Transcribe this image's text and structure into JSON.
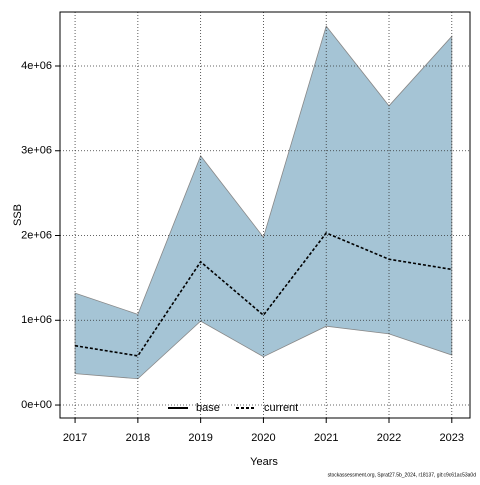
{
  "chart_data": {
    "type": "line",
    "xlabel": "Years",
    "ylabel": "SSB",
    "footnote": "stockassessment.org, Sprat27.5b_2024, r18137, git:c9c61ac53a0d",
    "x": [
      2017,
      2018,
      2019,
      2020,
      2021,
      2022,
      2023
    ],
    "band": {
      "color": "#a5c4d5",
      "upper": [
        1320000,
        1070000,
        2940000,
        1980000,
        4470000,
        3530000,
        4350000
      ],
      "lower": [
        370000,
        310000,
        990000,
        570000,
        930000,
        840000,
        590000
      ]
    },
    "series": [
      {
        "name": "current",
        "color": "#000000",
        "dash": true,
        "values": [
          700000,
          580000,
          1690000,
          1060000,
          2030000,
          1720000,
          1600000
        ]
      }
    ],
    "legend": [
      {
        "name": "base",
        "dash": false
      },
      {
        "name": "current",
        "dash": true
      }
    ],
    "legend_position": "bottom",
    "xlim": [
      2016.76,
      2023.29
    ],
    "xticks": [
      2017,
      2018,
      2019,
      2020,
      2021,
      2022,
      2023
    ],
    "ylim": [
      -153000,
      4637000
    ],
    "yticks": [
      {
        "value": 0,
        "label": "0e+00"
      },
      {
        "value": 1000000,
        "label": "1e+06"
      },
      {
        "value": 2000000,
        "label": "2e+06"
      },
      {
        "value": 3000000,
        "label": "3e+06"
      },
      {
        "value": 4000000,
        "label": "4e+06"
      }
    ],
    "grid": true
  }
}
